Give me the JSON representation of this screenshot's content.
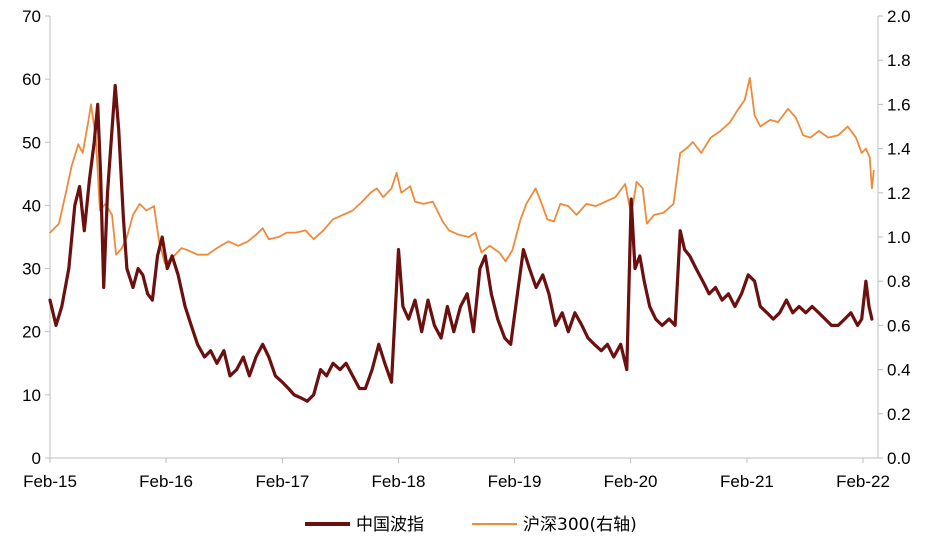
{
  "chart_data": {
    "type": "line",
    "title": "",
    "xlabel": "",
    "ylabel": "",
    "x_ticks": [
      "Feb-15",
      "Feb-16",
      "Feb-17",
      "Feb-18",
      "Feb-19",
      "Feb-20",
      "Feb-21",
      "Feb-22"
    ],
    "y_left": {
      "lim": [
        0,
        70
      ],
      "ticks": [
        "0",
        "10",
        "20",
        "30",
        "40",
        "50",
        "60",
        "70"
      ]
    },
    "y_right": {
      "lim": [
        0,
        2.0
      ],
      "ticks": [
        "0.0",
        "0.2",
        "0.4",
        "0.6",
        "0.8",
        "1.0",
        "1.2",
        "1.4",
        "1.6",
        "1.8",
        "2.0"
      ]
    },
    "grid": false,
    "legend_position": "bottom",
    "series": [
      {
        "name": "中国波指",
        "axis": "left",
        "color": "#6b0f0f",
        "points": [
          [
            "2015-02-01",
            25
          ],
          [
            "2015-02-20",
            21
          ],
          [
            "2015-03-10",
            24
          ],
          [
            "2015-04-01",
            30
          ],
          [
            "2015-04-20",
            40
          ],
          [
            "2015-05-05",
            43
          ],
          [
            "2015-05-20",
            36
          ],
          [
            "2015-06-05",
            44
          ],
          [
            "2015-06-20",
            50
          ],
          [
            "2015-07-01",
            56
          ],
          [
            "2015-07-10",
            45
          ],
          [
            "2015-07-20",
            27
          ],
          [
            "2015-08-01",
            42
          ],
          [
            "2015-08-15",
            52
          ],
          [
            "2015-08-25",
            59
          ],
          [
            "2015-09-05",
            52
          ],
          [
            "2015-09-20",
            38
          ],
          [
            "2015-10-01",
            30
          ],
          [
            "2015-10-20",
            27
          ],
          [
            "2015-11-05",
            30
          ],
          [
            "2015-11-20",
            29
          ],
          [
            "2015-12-05",
            26
          ],
          [
            "2015-12-20",
            25
          ],
          [
            "2016-01-05",
            32
          ],
          [
            "2016-01-20",
            35
          ],
          [
            "2016-02-05",
            30
          ],
          [
            "2016-02-20",
            32
          ],
          [
            "2016-03-10",
            29
          ],
          [
            "2016-04-01",
            24
          ],
          [
            "2016-04-20",
            21
          ],
          [
            "2016-05-10",
            18
          ],
          [
            "2016-06-01",
            16
          ],
          [
            "2016-06-20",
            17
          ],
          [
            "2016-07-10",
            15
          ],
          [
            "2016-08-01",
            17
          ],
          [
            "2016-08-20",
            13
          ],
          [
            "2016-09-10",
            14
          ],
          [
            "2016-10-01",
            16
          ],
          [
            "2016-10-20",
            13
          ],
          [
            "2016-11-10",
            16
          ],
          [
            "2016-12-01",
            18
          ],
          [
            "2016-12-20",
            16
          ],
          [
            "2017-01-10",
            13
          ],
          [
            "2017-02-01",
            12
          ],
          [
            "2017-02-20",
            11
          ],
          [
            "2017-03-10",
            10
          ],
          [
            "2017-04-01",
            9.5
          ],
          [
            "2017-04-20",
            9
          ],
          [
            "2017-05-10",
            10
          ],
          [
            "2017-06-01",
            14
          ],
          [
            "2017-06-20",
            13
          ],
          [
            "2017-07-10",
            15
          ],
          [
            "2017-08-01",
            14
          ],
          [
            "2017-08-20",
            15
          ],
          [
            "2017-09-10",
            13
          ],
          [
            "2017-10-01",
            11
          ],
          [
            "2017-10-20",
            11
          ],
          [
            "2017-11-10",
            14
          ],
          [
            "2017-12-01",
            18
          ],
          [
            "2017-12-20",
            15
          ],
          [
            "2018-01-10",
            12
          ],
          [
            "2018-02-01",
            33
          ],
          [
            "2018-02-15",
            24
          ],
          [
            "2018-03-05",
            22
          ],
          [
            "2018-03-25",
            25
          ],
          [
            "2018-04-15",
            20
          ],
          [
            "2018-05-05",
            25
          ],
          [
            "2018-05-25",
            21
          ],
          [
            "2018-06-15",
            19
          ],
          [
            "2018-07-05",
            24
          ],
          [
            "2018-07-25",
            20
          ],
          [
            "2018-08-15",
            24
          ],
          [
            "2018-09-05",
            26
          ],
          [
            "2018-09-25",
            20
          ],
          [
            "2018-10-15",
            30
          ],
          [
            "2018-11-01",
            32
          ],
          [
            "2018-11-20",
            26
          ],
          [
            "2018-12-10",
            22
          ],
          [
            "2019-01-01",
            19
          ],
          [
            "2019-01-20",
            18
          ],
          [
            "2019-02-10",
            26
          ],
          [
            "2019-03-01",
            33
          ],
          [
            "2019-03-20",
            30
          ],
          [
            "2019-04-10",
            27
          ],
          [
            "2019-05-01",
            29
          ],
          [
            "2019-05-20",
            26
          ],
          [
            "2019-06-10",
            21
          ],
          [
            "2019-07-01",
            23
          ],
          [
            "2019-07-20",
            20
          ],
          [
            "2019-08-10",
            23
          ],
          [
            "2019-09-01",
            21
          ],
          [
            "2019-09-20",
            19
          ],
          [
            "2019-10-10",
            18
          ],
          [
            "2019-11-01",
            17
          ],
          [
            "2019-11-20",
            18
          ],
          [
            "2019-12-10",
            16
          ],
          [
            "2020-01-01",
            18
          ],
          [
            "2020-01-20",
            14
          ],
          [
            "2020-02-03",
            41
          ],
          [
            "2020-02-15",
            30
          ],
          [
            "2020-03-01",
            32
          ],
          [
            "2020-03-15",
            28
          ],
          [
            "2020-04-01",
            24
          ],
          [
            "2020-04-20",
            22
          ],
          [
            "2020-05-10",
            21
          ],
          [
            "2020-06-01",
            22
          ],
          [
            "2020-06-20",
            21
          ],
          [
            "2020-07-06",
            36
          ],
          [
            "2020-07-20",
            33
          ],
          [
            "2020-08-05",
            32
          ],
          [
            "2020-08-25",
            30
          ],
          [
            "2020-09-15",
            28
          ],
          [
            "2020-10-05",
            26
          ],
          [
            "2020-10-25",
            27
          ],
          [
            "2020-11-15",
            25
          ],
          [
            "2020-12-05",
            26
          ],
          [
            "2020-12-25",
            24
          ],
          [
            "2021-01-15",
            26
          ],
          [
            "2021-02-05",
            29
          ],
          [
            "2021-02-25",
            28
          ],
          [
            "2021-03-15",
            24
          ],
          [
            "2021-04-05",
            23
          ],
          [
            "2021-04-25",
            22
          ],
          [
            "2021-05-15",
            23
          ],
          [
            "2021-06-05",
            25
          ],
          [
            "2021-06-25",
            23
          ],
          [
            "2021-07-15",
            24
          ],
          [
            "2021-08-05",
            23
          ],
          [
            "2021-08-25",
            24
          ],
          [
            "2021-09-15",
            23
          ],
          [
            "2021-10-05",
            22
          ],
          [
            "2021-10-25",
            21
          ],
          [
            "2021-11-15",
            21
          ],
          [
            "2021-12-05",
            22
          ],
          [
            "2021-12-25",
            23
          ],
          [
            "2022-01-15",
            21
          ],
          [
            "2022-01-28",
            22
          ],
          [
            "2022-02-10",
            28
          ],
          [
            "2022-02-20",
            24
          ],
          [
            "2022-03-01",
            22
          ]
        ]
      },
      {
        "name": "沪深300(右轴)",
        "axis": "right",
        "color": "#ef8a3a",
        "points": [
          [
            "2015-02-01",
            1.02
          ],
          [
            "2015-03-01",
            1.06
          ],
          [
            "2015-03-20",
            1.18
          ],
          [
            "2015-04-10",
            1.32
          ],
          [
            "2015-05-01",
            1.42
          ],
          [
            "2015-05-15",
            1.38
          ],
          [
            "2015-06-01",
            1.52
          ],
          [
            "2015-06-10",
            1.6
          ],
          [
            "2015-06-25",
            1.45
          ],
          [
            "2015-07-08",
            1.12
          ],
          [
            "2015-07-25",
            1.15
          ],
          [
            "2015-08-15",
            1.1
          ],
          [
            "2015-08-28",
            0.92
          ],
          [
            "2015-09-15",
            0.95
          ],
          [
            "2015-10-01",
            1.0
          ],
          [
            "2015-10-20",
            1.1
          ],
          [
            "2015-11-10",
            1.15
          ],
          [
            "2015-12-01",
            1.12
          ],
          [
            "2015-12-25",
            1.14
          ],
          [
            "2016-01-10",
            0.98
          ],
          [
            "2016-01-28",
            0.88
          ],
          [
            "2016-02-15",
            0.9
          ],
          [
            "2016-03-01",
            0.92
          ],
          [
            "2016-03-20",
            0.95
          ],
          [
            "2016-04-10",
            0.94
          ],
          [
            "2016-05-10",
            0.92
          ],
          [
            "2016-06-10",
            0.92
          ],
          [
            "2016-07-10",
            0.95
          ],
          [
            "2016-08-15",
            0.98
          ],
          [
            "2016-09-15",
            0.96
          ],
          [
            "2016-10-15",
            0.98
          ],
          [
            "2016-11-10",
            1.01
          ],
          [
            "2016-12-01",
            1.04
          ],
          [
            "2016-12-20",
            0.99
          ],
          [
            "2017-01-20",
            1.0
          ],
          [
            "2017-02-15",
            1.02
          ],
          [
            "2017-03-15",
            1.02
          ],
          [
            "2017-04-15",
            1.03
          ],
          [
            "2017-05-10",
            0.99
          ],
          [
            "2017-06-10",
            1.03
          ],
          [
            "2017-07-10",
            1.08
          ],
          [
            "2017-08-10",
            1.1
          ],
          [
            "2017-09-10",
            1.12
          ],
          [
            "2017-10-10",
            1.16
          ],
          [
            "2017-11-05",
            1.2
          ],
          [
            "2017-11-25",
            1.22
          ],
          [
            "2017-12-15",
            1.18
          ],
          [
            "2018-01-10",
            1.22
          ],
          [
            "2018-01-26",
            1.29
          ],
          [
            "2018-02-10",
            1.2
          ],
          [
            "2018-03-10",
            1.23
          ],
          [
            "2018-03-25",
            1.16
          ],
          [
            "2018-04-20",
            1.15
          ],
          [
            "2018-05-20",
            1.16
          ],
          [
            "2018-06-20",
            1.07
          ],
          [
            "2018-07-10",
            1.03
          ],
          [
            "2018-08-10",
            1.01
          ],
          [
            "2018-09-10",
            1.0
          ],
          [
            "2018-10-01",
            1.02
          ],
          [
            "2018-10-20",
            0.93
          ],
          [
            "2018-11-15",
            0.96
          ],
          [
            "2018-12-15",
            0.93
          ],
          [
            "2019-01-04",
            0.89
          ],
          [
            "2019-01-25",
            0.94
          ],
          [
            "2019-02-20",
            1.08
          ],
          [
            "2019-03-10",
            1.15
          ],
          [
            "2019-04-08",
            1.22
          ],
          [
            "2019-04-25",
            1.16
          ],
          [
            "2019-05-15",
            1.08
          ],
          [
            "2019-06-05",
            1.07
          ],
          [
            "2019-06-25",
            1.15
          ],
          [
            "2019-07-20",
            1.14
          ],
          [
            "2019-08-15",
            1.1
          ],
          [
            "2019-09-15",
            1.15
          ],
          [
            "2019-10-15",
            1.14
          ],
          [
            "2019-11-15",
            1.16
          ],
          [
            "2019-12-15",
            1.18
          ],
          [
            "2020-01-15",
            1.24
          ],
          [
            "2020-02-03",
            1.1
          ],
          [
            "2020-02-20",
            1.25
          ],
          [
            "2020-03-10",
            1.22
          ],
          [
            "2020-03-23",
            1.06
          ],
          [
            "2020-04-15",
            1.1
          ],
          [
            "2020-05-15",
            1.11
          ],
          [
            "2020-06-15",
            1.15
          ],
          [
            "2020-07-06",
            1.38
          ],
          [
            "2020-07-25",
            1.4
          ],
          [
            "2020-08-15",
            1.43
          ],
          [
            "2020-09-10",
            1.38
          ],
          [
            "2020-10-10",
            1.45
          ],
          [
            "2020-11-10",
            1.48
          ],
          [
            "2020-12-10",
            1.52
          ],
          [
            "2021-01-05",
            1.58
          ],
          [
            "2021-01-25",
            1.62
          ],
          [
            "2021-02-10",
            1.72
          ],
          [
            "2021-02-25",
            1.55
          ],
          [
            "2021-03-15",
            1.5
          ],
          [
            "2021-04-15",
            1.53
          ],
          [
            "2021-05-10",
            1.52
          ],
          [
            "2021-06-10",
            1.58
          ],
          [
            "2021-07-05",
            1.54
          ],
          [
            "2021-07-28",
            1.46
          ],
          [
            "2021-08-20",
            1.45
          ],
          [
            "2021-09-15",
            1.48
          ],
          [
            "2021-10-15",
            1.45
          ],
          [
            "2021-11-15",
            1.46
          ],
          [
            "2021-12-15",
            1.5
          ],
          [
            "2022-01-10",
            1.45
          ],
          [
            "2022-01-28",
            1.38
          ],
          [
            "2022-02-10",
            1.4
          ],
          [
            "2022-02-22",
            1.36
          ],
          [
            "2022-03-01",
            1.22
          ],
          [
            "2022-03-07",
            1.3
          ]
        ]
      }
    ]
  }
}
